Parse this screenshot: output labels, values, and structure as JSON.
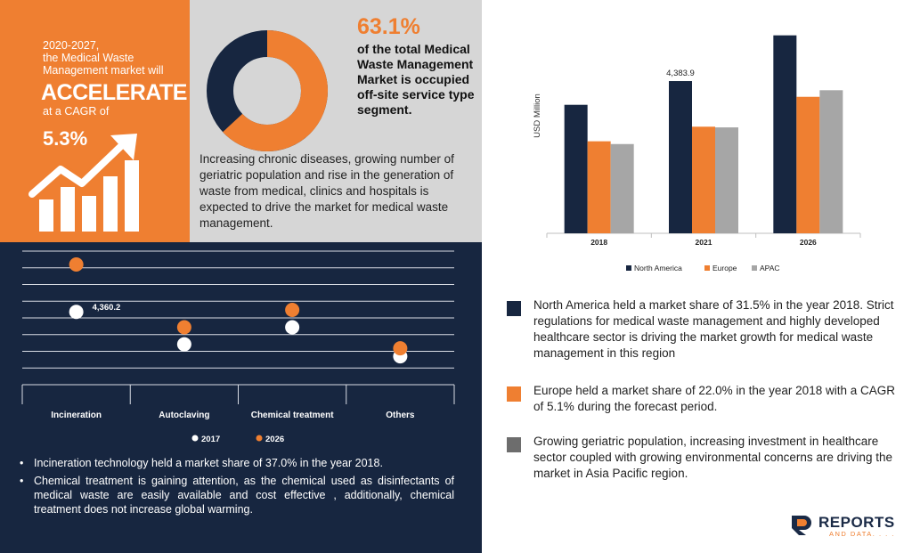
{
  "orange": {
    "line1": "2020-2027,",
    "line2": "the Medical Waste",
    "line3": "Management market will",
    "accelerate": "ACCELERATE",
    "cagr_label": "at a CAGR of",
    "cagr_value": "5.3%",
    "icon": "growth-arrow-icon",
    "color": "#ef7f31"
  },
  "donut": {
    "percent_label": "63.1%",
    "percent": 63.1,
    "description": "of the total Medical Waste Management Market is occupied off-site service type segment.",
    "colors": {
      "main": "#172640",
      "highlight": "#ef7f31"
    }
  },
  "grey_paragraph": "Increasing chronic diseases, growing number of geriatric population and rise in the generation of waste from medical, clinics and hospitals is expected to drive the market for medical waste management.",
  "dot_chart_text": {
    "bullets": [
      "Incineration technology held a market share of 37.0% in the year 2018.",
      "Chemical treatment is gaining attention, as the chemical used as disinfectants of medical waste are easily available and cost effective , additionally, chemical treatment does not increase global warming."
    ]
  },
  "legend_blocks": [
    {
      "color": "#172640",
      "text": "North America held a market share of 31.5% in the year 2018. Strict regulations for medical waste management and highly developed healthcare sector is driving the market growth for medical waste management in this region"
    },
    {
      "color": "#ef7f31",
      "text": "Europe held a market share of 22.0% in the year 2018 with a CAGR of 5.1% during the forecast period."
    },
    {
      "color": "#6d6d6d",
      "text": "Growing geriatric population, increasing investment in healthcare sector coupled with growing environmental concerns are driving the market in Asia Pacific region."
    }
  ],
  "logo": {
    "word": "REPORTS",
    "sub": "AND DATA. . . ."
  },
  "chart_data": [
    {
      "type": "bar",
      "ylabel": "USD Million",
      "categories": [
        "2018",
        "2021",
        "2026"
      ],
      "series": [
        {
          "name": "North America",
          "color": "#172640",
          "values": [
            3700,
            4383.9,
            5700
          ]
        },
        {
          "name": "Europe",
          "color": "#ef7f31",
          "values": [
            2650,
            3070,
            3930
          ]
        },
        {
          "name": "APAC",
          "color": "#a6a6a6",
          "values": [
            2570,
            3050,
            4120
          ]
        }
      ],
      "data_labels": [
        {
          "series": 0,
          "index": 1,
          "text": "4,383.9"
        }
      ],
      "ylim": [
        0,
        6000
      ],
      "grid": false,
      "legend": "bottom"
    },
    {
      "type": "scatter",
      "categories": [
        "Incineration",
        "Autoclaving",
        "Chemical treatment",
        "Others"
      ],
      "series": [
        {
          "name": "2017",
          "color": "#ffffff",
          "values": [
            4360.2,
            2420,
            3440,
            1700
          ]
        },
        {
          "name": "2026",
          "color": "#ef7f31",
          "values": [
            7200,
            3440,
            4480,
            2180
          ]
        }
      ],
      "data_labels": [
        {
          "series": 0,
          "index": 0,
          "text": "4,360.2"
        }
      ],
      "ylim": [
        0,
        8000
      ],
      "grid": true,
      "legend": "bottom"
    }
  ]
}
